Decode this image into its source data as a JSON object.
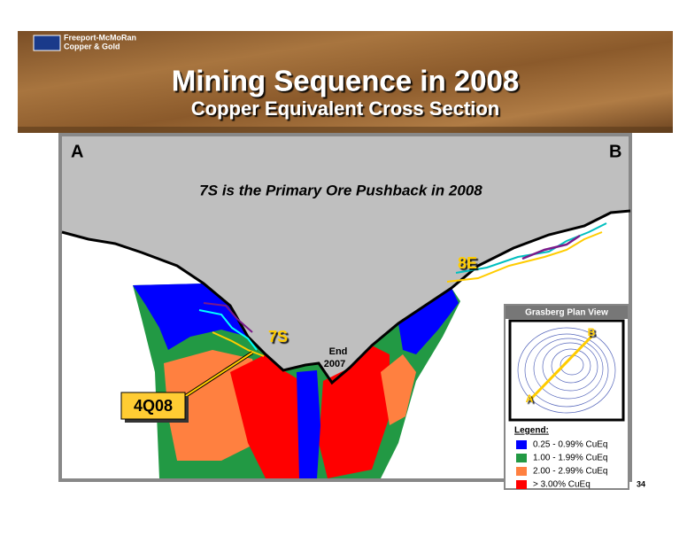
{
  "header": {
    "logo_line1": "Freeport-McMoRan",
    "logo_line2": "Copper & Gold",
    "title": "Mining Sequence in 2008",
    "subtitle": "Copper Equivalent Cross Section"
  },
  "section": {
    "left_end": "A",
    "right_end": "B",
    "headline": "7S is the Primary Ore Pushback in 2008",
    "label_8e": "8E",
    "label_7s": "7S",
    "end_line1": "End",
    "end_line2": "2007",
    "label_4q08": "4Q08"
  },
  "inset": {
    "title": "Grasberg Plan View",
    "point_a": "A",
    "point_b": "B",
    "legend_title": "Legend:",
    "legend": [
      {
        "label": "0.25 - 0.99%  CuEq",
        "color": "#0000ff"
      },
      {
        "label": "1.00 - 1.99%  CuEq",
        "color": "#229944"
      },
      {
        "label": "2.00 - 2.99%  CuEq",
        "color": "#ff8040"
      },
      {
        "label": "> 3.00%  CuEq",
        "color": "#ff0000"
      }
    ]
  },
  "page_number": "34"
}
